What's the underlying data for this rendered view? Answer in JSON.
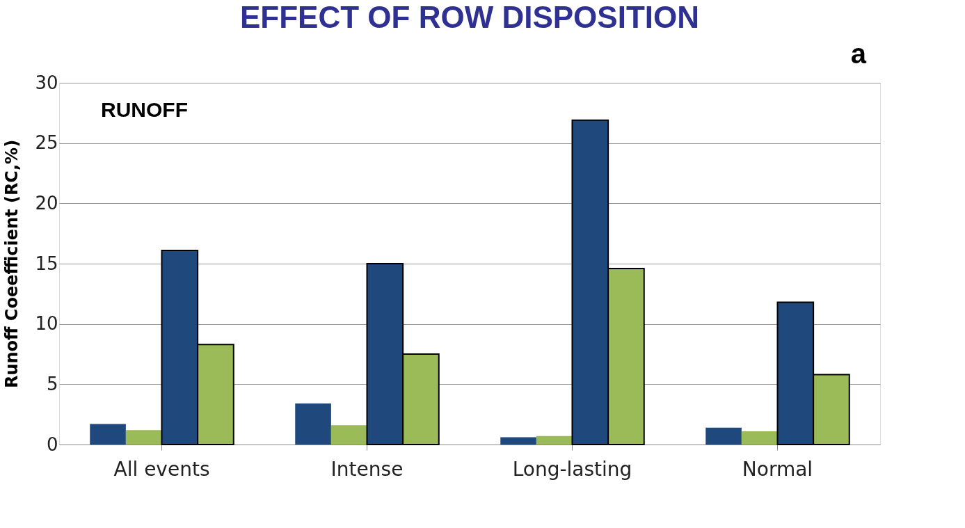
{
  "chart_data": {
    "type": "bar",
    "title": "EFFECT OF ROW DISPOSITION",
    "ylabel": "Runoff Coeefficient (RC,%)",
    "categories": [
      "All events",
      "Intense",
      "Long-lasting",
      "Normal"
    ],
    "series": [
      {
        "color": "#1f497d",
        "values": [
          1.7,
          3.4,
          0.6,
          1.4
        ]
      },
      {
        "color": "#9bbb59",
        "values": [
          1.2,
          1.6,
          0.7,
          1.1
        ]
      },
      {
        "color": "#1f497d",
        "values": [
          16.1,
          15.0,
          26.9,
          11.8
        ]
      },
      {
        "color": "#9bbb59",
        "values": [
          8.3,
          7.5,
          14.6,
          5.8
        ]
      }
    ],
    "ylim": [
      0,
      30
    ],
    "yticks": [
      0,
      5,
      10,
      15,
      20,
      25,
      30
    ],
    "grid": "y",
    "annotations": [
      "RUNOFF",
      "a"
    ]
  }
}
